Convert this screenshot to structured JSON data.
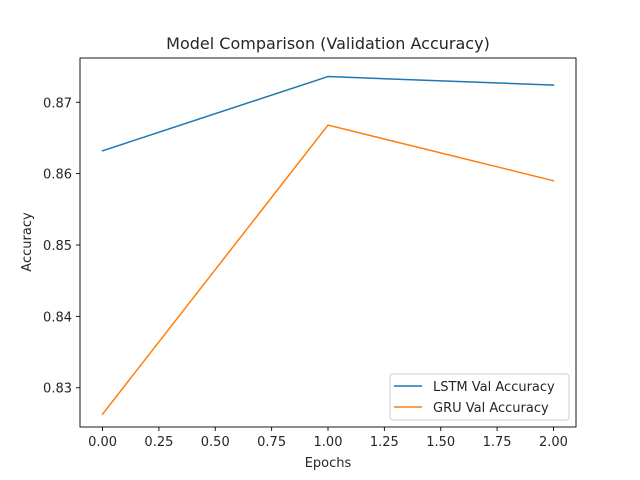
{
  "chart_data": {
    "type": "line",
    "title": "Model Comparison (Validation Accuracy)",
    "xlabel": "Epochs",
    "ylabel": "Accuracy",
    "x": [
      0,
      1,
      2
    ],
    "xlim": [
      -0.1,
      2.1
    ],
    "ylim": [
      0.8245,
      0.8762
    ],
    "xticks": [
      "0.00",
      "0.25",
      "0.50",
      "0.75",
      "1.00",
      "1.25",
      "1.50",
      "1.75",
      "2.00"
    ],
    "yticks": [
      "0.83",
      "0.84",
      "0.85",
      "0.86",
      "0.87"
    ],
    "grid": false,
    "legend_position": "lower-right",
    "series": [
      {
        "name": "LSTM Val Accuracy",
        "color": "#1f77b4",
        "values": [
          0.8632,
          0.8736,
          0.8724
        ]
      },
      {
        "name": "GRU Val Accuracy",
        "color": "#ff7f0e",
        "values": [
          0.8263,
          0.8668,
          0.859
        ]
      }
    ]
  }
}
